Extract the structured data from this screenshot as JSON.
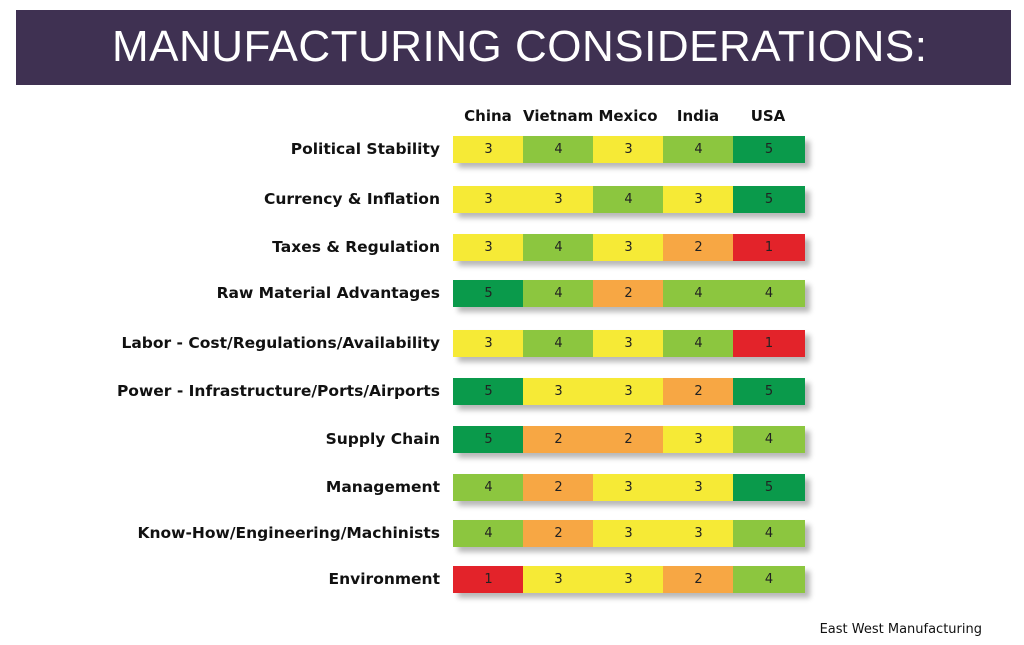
{
  "title": "MANUFACTURING CONSIDERATIONS:",
  "source": "East West Manufacturing",
  "colors": {
    "banner": "#3f3152",
    "score_1": "#e3232a",
    "score_2": "#f7a744",
    "score_3": "#f6ea36",
    "score_4": "#8cc63f",
    "score_5": "#0a9a4b"
  },
  "chart_data": {
    "type": "heatmap",
    "title": "MANUFACTURING CONSIDERATIONS:",
    "columns": [
      "China",
      "Vietnam",
      "Mexico",
      "India",
      "USA"
    ],
    "rows": [
      {
        "label": "Political Stability",
        "values": [
          3,
          4,
          3,
          4,
          5
        ]
      },
      {
        "label": "Currency & Inflation",
        "values": [
          3,
          3,
          4,
          3,
          5
        ]
      },
      {
        "label": "Taxes & Regulation",
        "values": [
          3,
          4,
          3,
          2,
          1
        ]
      },
      {
        "label": "Raw Material Advantages",
        "values": [
          5,
          4,
          2,
          4,
          4
        ]
      },
      {
        "label": "Labor - Cost/Regulations/Availability",
        "values": [
          3,
          4,
          3,
          4,
          1
        ]
      },
      {
        "label": "Power - Infrastructure/Ports/Airports",
        "values": [
          5,
          3,
          3,
          2,
          5
        ]
      },
      {
        "label": "Supply Chain",
        "values": [
          5,
          2,
          2,
          3,
          4
        ]
      },
      {
        "label": "Management",
        "values": [
          4,
          2,
          3,
          3,
          5
        ]
      },
      {
        "label": "Know-How/Engineering/Machinists",
        "values": [
          4,
          2,
          3,
          3,
          4
        ]
      },
      {
        "label": "Environment",
        "values": [
          1,
          3,
          3,
          2,
          4
        ]
      }
    ]
  }
}
